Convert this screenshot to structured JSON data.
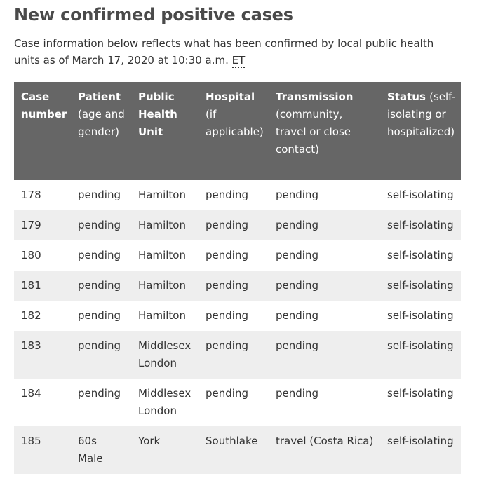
{
  "heading": "New confirmed positive cases",
  "intro": {
    "text": "Case information below reflects what has been confirmed by local public health units as of March 17, 2020 at 10:30 a.m. ",
    "abbr": "ET"
  },
  "table": {
    "headers": [
      {
        "bold": "Case number",
        "sub": ""
      },
      {
        "bold": "Patient",
        "sub": "(age and gender)"
      },
      {
        "bold": "Public Health Unit",
        "sub": ""
      },
      {
        "bold": "Hospital",
        "sub": "(if applicable)"
      },
      {
        "bold": "Transmission",
        "sub": "(community, travel or close contact)"
      },
      {
        "bold": "Status",
        "sub": "(self-isolating or hospitalized)"
      }
    ],
    "rows": [
      {
        "case": "178",
        "patient": [
          "pending"
        ],
        "unit": [
          "Hamilton"
        ],
        "hospital": "pending",
        "transmission": "pending",
        "status": "self-isolating"
      },
      {
        "case": "179",
        "patient": [
          "pending"
        ],
        "unit": [
          "Hamilton"
        ],
        "hospital": "pending",
        "transmission": "pending",
        "status": "self-isolating"
      },
      {
        "case": "180",
        "patient": [
          "pending"
        ],
        "unit": [
          "Hamilton"
        ],
        "hospital": "pending",
        "transmission": "pending",
        "status": "self-isolating"
      },
      {
        "case": "181",
        "patient": [
          "pending"
        ],
        "unit": [
          "Hamilton"
        ],
        "hospital": "pending",
        "transmission": "pending",
        "status": "self-isolating"
      },
      {
        "case": "182",
        "patient": [
          "pending"
        ],
        "unit": [
          "Hamilton"
        ],
        "hospital": "pending",
        "transmission": "pending",
        "status": "self-isolating"
      },
      {
        "case": "183",
        "patient": [
          "pending"
        ],
        "unit": [
          "Middlesex",
          "London"
        ],
        "hospital": "pending",
        "transmission": "pending",
        "status": "self-isolating"
      },
      {
        "case": "184",
        "patient": [
          "pending"
        ],
        "unit": [
          "Middlesex",
          "London"
        ],
        "hospital": "pending",
        "transmission": "pending",
        "status": "self-isolating"
      },
      {
        "case": "185",
        "patient": [
          "60s",
          "Male"
        ],
        "unit": [
          "York"
        ],
        "hospital": "Southlake",
        "transmission": "travel (Costa Rica)",
        "status": "self-isolating"
      }
    ]
  }
}
